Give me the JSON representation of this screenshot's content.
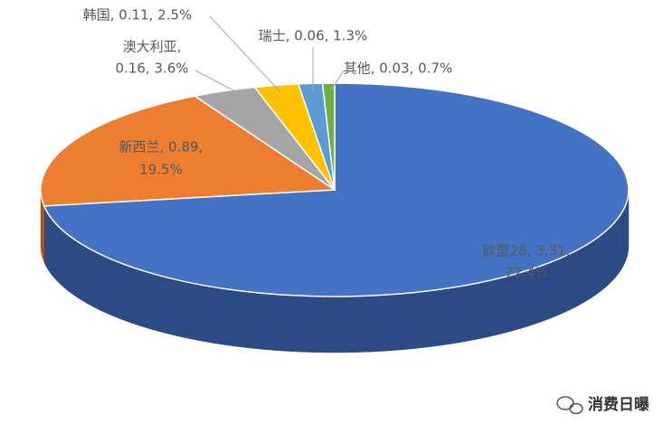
{
  "chart_data": {
    "type": "pie3d",
    "values": [
      3.31,
      0.89,
      0.16,
      0.11,
      0.06,
      0.03
    ],
    "value_labels": [
      [
        "欧盟28, 3.31,",
        "72.4%"
      ],
      [
        "新西兰, 0.89,",
        "19.5%"
      ],
      [
        "澳大利亚,",
        "0.16, 3.6%"
      ],
      [
        "韩国, 0.11, 2.5%"
      ],
      [
        "瑞士, 0.06, 1.3%"
      ],
      [
        "其他, 0.03, 0.7%"
      ]
    ],
    "colors": [
      "#4472c4",
      "#ed7d31",
      "#a5a5a5",
      "#ffc000",
      "#5b9bd5",
      "#70ad47"
    ],
    "side_colors": [
      "#2b4a86",
      "#a9561d",
      "#6f6f6f",
      "#b38600",
      "#3a6f9f",
      "#4b7a2e"
    ]
  },
  "watermark": "消费日曝"
}
